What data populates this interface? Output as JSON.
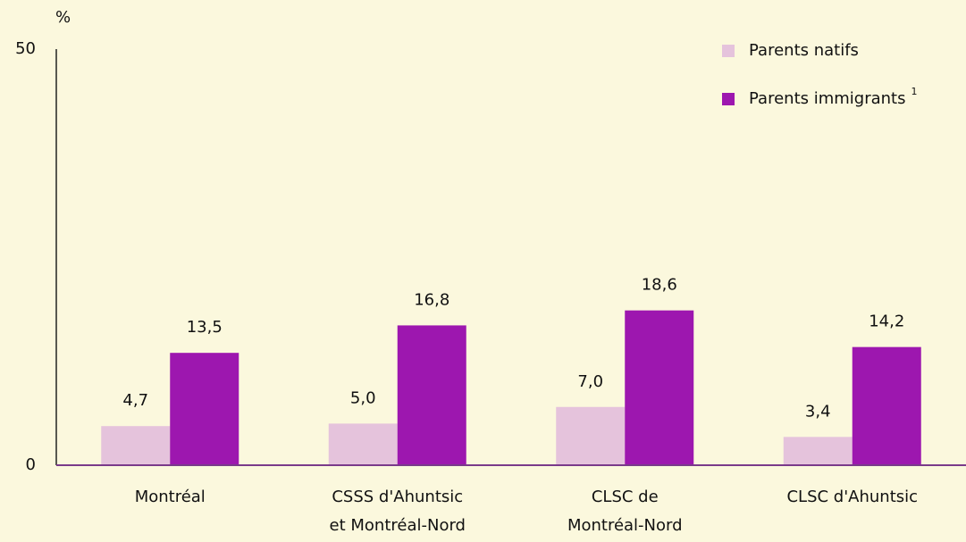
{
  "chart_data": {
    "type": "bar",
    "unit_label": "%",
    "categories": [
      "Montréal",
      "CSSS d'Ahuntsic\net Montréal-Nord",
      "CLSC de\nMontréal-Nord",
      "CLSC d'Ahuntsic"
    ],
    "series": [
      {
        "name": "Parents natifs",
        "color": "#e5c3dc",
        "values": [
          4.7,
          5.0,
          7.0,
          3.4
        ],
        "value_labels": [
          "4,7",
          "5,0",
          "7,0",
          "3,4"
        ]
      },
      {
        "name": "Parents immigrants",
        "note": "1",
        "color": "#9d17af",
        "values": [
          13.5,
          16.8,
          18.6,
          14.2
        ],
        "value_labels": [
          "13,5",
          "16,8",
          "18,6",
          "14,2"
        ]
      }
    ],
    "ylim": [
      0,
      50
    ],
    "yticks": [
      0,
      50
    ],
    "grid": false,
    "legend": "top-right"
  }
}
